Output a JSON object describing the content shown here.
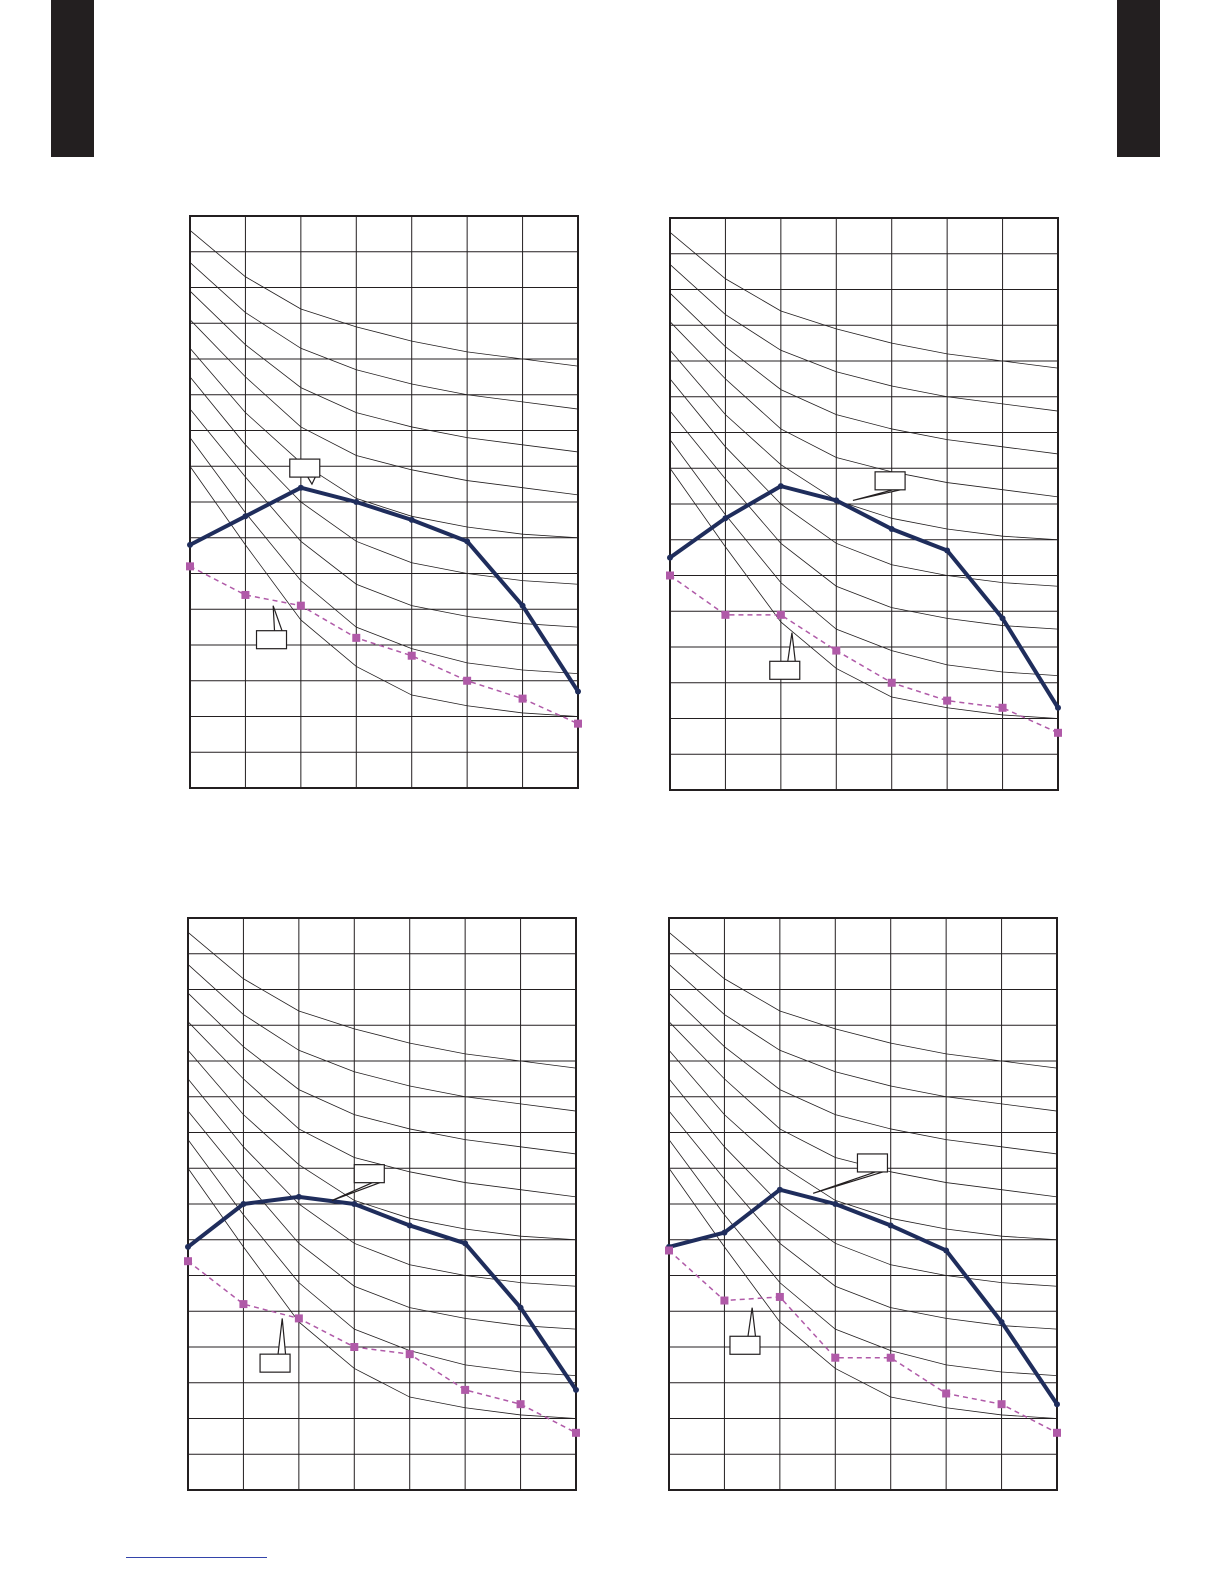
{
  "colors": {
    "page_tab": "#231f20",
    "grid": "#231f20",
    "curves": "#231f20",
    "series_solid": "#1f2d5c",
    "series_dashed": "#b05aa8",
    "footer_rule": "#3344aa"
  },
  "chart_data": [
    {
      "type": "line",
      "xlim": [
        0,
        7
      ],
      "ylim": [
        0,
        16
      ],
      "grid": true,
      "x": [
        0,
        1,
        2,
        3,
        4,
        5,
        6,
        7
      ],
      "series": [
        {
          "style": "solid",
          "values": [
            6.8,
            7.6,
            8.4,
            8.0,
            7.5,
            6.9,
            5.1,
            2.7
          ]
        },
        {
          "style": "dashed",
          "values": [
            6.2,
            5.4,
            5.1,
            4.2,
            3.7,
            3.0,
            2.5,
            1.8
          ]
        }
      ],
      "curves": [
        [
          15.6,
          14.3,
          13.4,
          12.9,
          12.5,
          12.2,
          12.0,
          11.8
        ],
        [
          14.7,
          13.3,
          12.3,
          11.7,
          11.3,
          11.0,
          10.8,
          10.6
        ],
        [
          13.9,
          12.4,
          11.2,
          10.5,
          10.1,
          9.8,
          9.6,
          9.4
        ],
        [
          13.1,
          11.5,
          10.1,
          9.3,
          8.9,
          8.6,
          8.4,
          8.2
        ],
        [
          12.3,
          10.5,
          9.1,
          8.1,
          7.6,
          7.3,
          7.1,
          7.0
        ],
        [
          11.5,
          9.6,
          8.0,
          6.9,
          6.3,
          6.0,
          5.8,
          5.7
        ],
        [
          10.6,
          8.7,
          6.9,
          5.7,
          5.1,
          4.8,
          4.6,
          4.5
        ],
        [
          9.8,
          7.7,
          5.8,
          4.5,
          3.9,
          3.5,
          3.3,
          3.2
        ],
        [
          9.0,
          6.8,
          4.7,
          3.4,
          2.6,
          2.3,
          2.1,
          2.0
        ]
      ],
      "callouts": [
        {
          "text": "",
          "at": [
            1.8,
            9.2
          ],
          "tip": [
            2.2,
            8.5
          ]
        },
        {
          "text": "",
          "at": [
            1.2,
            4.4
          ],
          "tip": [
            1.5,
            5.1
          ]
        }
      ]
    },
    {
      "type": "line",
      "xlim": [
        0,
        7
      ],
      "ylim": [
        0,
        16
      ],
      "grid": true,
      "x": [
        0,
        1,
        2,
        3,
        4,
        5,
        6,
        7
      ],
      "series": [
        {
          "style": "solid",
          "values": [
            6.5,
            7.6,
            8.5,
            8.1,
            7.3,
            6.7,
            4.8,
            2.3
          ]
        },
        {
          "style": "dashed",
          "values": [
            6.0,
            4.9,
            4.9,
            3.9,
            3.0,
            2.5,
            2.3,
            1.6
          ]
        }
      ],
      "curves": [
        [
          15.6,
          14.3,
          13.4,
          12.9,
          12.5,
          12.2,
          12.0,
          11.8
        ],
        [
          14.7,
          13.3,
          12.3,
          11.7,
          11.3,
          11.0,
          10.8,
          10.6
        ],
        [
          13.9,
          12.4,
          11.2,
          10.5,
          10.1,
          9.8,
          9.6,
          9.4
        ],
        [
          13.1,
          11.5,
          10.1,
          9.3,
          8.9,
          8.6,
          8.4,
          8.2
        ],
        [
          12.3,
          10.5,
          9.1,
          8.1,
          7.6,
          7.3,
          7.1,
          7.0
        ],
        [
          11.5,
          9.6,
          8.0,
          6.9,
          6.3,
          6.0,
          5.8,
          5.7
        ],
        [
          10.6,
          8.7,
          6.9,
          5.7,
          5.1,
          4.8,
          4.6,
          4.5
        ],
        [
          9.8,
          7.7,
          5.8,
          4.5,
          3.9,
          3.5,
          3.3,
          3.2
        ],
        [
          9.0,
          6.8,
          4.7,
          3.4,
          2.6,
          2.3,
          2.1,
          2.0
        ]
      ],
      "callouts": [
        {
          "text": "",
          "at": [
            3.7,
            8.9
          ],
          "tip": [
            3.3,
            8.1
          ]
        },
        {
          "text": "",
          "at": [
            1.8,
            3.6
          ],
          "tip": [
            2.2,
            4.4
          ]
        }
      ]
    },
    {
      "type": "line",
      "xlim": [
        0,
        7
      ],
      "ylim": [
        0,
        16
      ],
      "grid": true,
      "x": [
        0,
        1,
        2,
        3,
        4,
        5,
        6,
        7
      ],
      "series": [
        {
          "style": "solid",
          "values": [
            6.8,
            8.0,
            8.2,
            8.0,
            7.4,
            6.9,
            5.1,
            2.8
          ]
        },
        {
          "style": "dashed",
          "values": [
            6.4,
            5.2,
            4.8,
            4.0,
            3.8,
            2.8,
            2.4,
            1.6
          ]
        }
      ],
      "curves": [
        [
          15.6,
          14.3,
          13.4,
          12.9,
          12.5,
          12.2,
          12.0,
          11.8
        ],
        [
          14.7,
          13.3,
          12.3,
          11.7,
          11.3,
          11.0,
          10.8,
          10.6
        ],
        [
          13.9,
          12.4,
          11.2,
          10.5,
          10.1,
          9.8,
          9.6,
          9.4
        ],
        [
          13.1,
          11.5,
          10.1,
          9.3,
          8.9,
          8.6,
          8.4,
          8.2
        ],
        [
          12.3,
          10.5,
          9.1,
          8.1,
          7.6,
          7.3,
          7.1,
          7.0
        ],
        [
          11.5,
          9.6,
          8.0,
          6.9,
          6.3,
          6.0,
          5.8,
          5.7
        ],
        [
          10.6,
          8.7,
          6.9,
          5.7,
          5.1,
          4.8,
          4.6,
          4.5
        ],
        [
          9.8,
          7.7,
          5.8,
          4.5,
          3.9,
          3.5,
          3.3,
          3.2
        ],
        [
          9.0,
          6.8,
          4.7,
          3.4,
          2.6,
          2.3,
          2.1,
          2.0
        ]
      ],
      "callouts": [
        {
          "text": "",
          "at": [
            3.0,
            9.1
          ],
          "tip": [
            2.6,
            8.1
          ]
        },
        {
          "text": "",
          "at": [
            1.3,
            3.8
          ],
          "tip": [
            1.7,
            4.8
          ]
        }
      ]
    },
    {
      "type": "line",
      "xlim": [
        0,
        7
      ],
      "ylim": [
        0,
        16
      ],
      "grid": true,
      "x": [
        0,
        1,
        2,
        3,
        4,
        5,
        6,
        7
      ],
      "series": [
        {
          "style": "solid",
          "values": [
            6.8,
            7.2,
            8.4,
            8.0,
            7.4,
            6.7,
            4.7,
            2.4
          ]
        },
        {
          "style": "dashed",
          "values": [
            6.7,
            5.3,
            5.4,
            3.7,
            3.7,
            2.7,
            2.4,
            1.6
          ]
        }
      ],
      "curves": [
        [
          15.6,
          14.3,
          13.4,
          12.9,
          12.5,
          12.2,
          12.0,
          11.8
        ],
        [
          14.7,
          13.3,
          12.3,
          11.7,
          11.3,
          11.0,
          10.8,
          10.6
        ],
        [
          13.9,
          12.4,
          11.2,
          10.5,
          10.1,
          9.8,
          9.6,
          9.4
        ],
        [
          13.1,
          11.5,
          10.1,
          9.3,
          8.9,
          8.6,
          8.4,
          8.2
        ],
        [
          12.3,
          10.5,
          9.1,
          8.1,
          7.6,
          7.3,
          7.1,
          7.0
        ],
        [
          11.5,
          9.6,
          8.0,
          6.9,
          6.3,
          6.0,
          5.8,
          5.7
        ],
        [
          10.6,
          8.7,
          6.9,
          5.7,
          5.1,
          4.8,
          4.6,
          4.5
        ],
        [
          9.8,
          7.7,
          5.8,
          4.5,
          3.9,
          3.5,
          3.3,
          3.2
        ],
        [
          9.0,
          6.8,
          4.7,
          3.4,
          2.6,
          2.3,
          2.1,
          2.0
        ]
      ],
      "callouts": [
        {
          "text": "",
          "at": [
            3.4,
            9.4
          ],
          "tip": [
            2.6,
            8.3
          ]
        },
        {
          "text": "",
          "at": [
            1.1,
            4.3
          ],
          "tip": [
            1.5,
            5.1
          ]
        }
      ]
    }
  ]
}
